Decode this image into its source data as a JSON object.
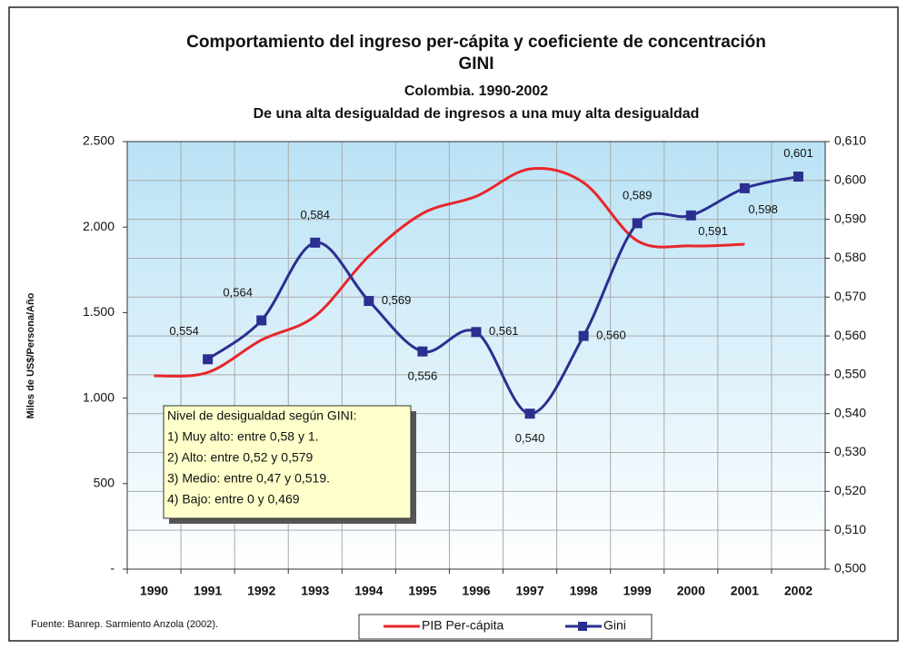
{
  "chart_data": {
    "type": "line",
    "title": [
      "Comportamiento del ingreso per-cápita y coeficiente de concentración",
      "GINI"
    ],
    "subtitle": [
      "Colombia.  1990-2002",
      "De una alta desigualdad de ingresos a una muy alta desigualdad"
    ],
    "y_label": "Miles de US$/Persona/Año",
    "categories": [
      "1990",
      "1991",
      "1992",
      "1993",
      "1994",
      "1995",
      "1996",
      "1997",
      "1998",
      "1999",
      "2000",
      "2001",
      "2002"
    ],
    "series": [
      {
        "name": "PIB Per-cápita",
        "color": "#e8262b",
        "marker": false,
        "values": [
          1130,
          1150,
          1340,
          1480,
          1830,
          2080,
          2180,
          2340,
          2260,
          1920,
          1890,
          1900,
          null
        ]
      },
      {
        "name": "Gini",
        "color": "#2b2f8f",
        "axis": "y2",
        "marker": true,
        "values": [
          null,
          0.554,
          0.564,
          0.584,
          0.569,
          0.556,
          0.561,
          0.54,
          0.56,
          0.589,
          0.591,
          0.598,
          0.601
        ],
        "value_labels": [
          null,
          "0,554",
          "0,564",
          "0,584",
          "0,569",
          "0,556",
          "0,561",
          "0,540",
          "0,560",
          "0,589",
          "0,591",
          "0,598",
          "0,601"
        ]
      }
    ],
    "ylim": [
      0,
      2500
    ],
    "yticks": [
      {
        "value": 0,
        "label": "-"
      },
      500,
      {
        "value": 1000,
        "label": "1.000"
      },
      {
        "value": 1500,
        "label": "1.500"
      },
      {
        "value": 2000,
        "label": "2.000"
      },
      {
        "value": 2500,
        "label": "2.500"
      }
    ],
    "y2lim": [
      0.5,
      0.61
    ],
    "y2ticks": [
      {
        "value": 0.5,
        "label": "0,500"
      },
      {
        "value": 0.51,
        "label": "0,510"
      },
      {
        "value": 0.52,
        "label": "0,520"
      },
      {
        "value": 0.53,
        "label": "0,530"
      },
      {
        "value": 0.54,
        "label": "0,540"
      },
      {
        "value": 0.55,
        "label": "0,550"
      },
      {
        "value": 0.56,
        "label": "0,560"
      },
      {
        "value": 0.57,
        "label": "0,570"
      },
      {
        "value": 0.58,
        "label": "0,580"
      },
      {
        "value": 0.59,
        "label": "0,590"
      },
      {
        "value": 0.6,
        "label": "0,600"
      },
      {
        "value": 0.61,
        "label": "0,610"
      }
    ],
    "grid": true,
    "legend": "bottom",
    "annotation": [
      "Nivel de desigualdad según GINI:",
      "1) Muy alto: entre 0,58 y 1.",
      "2) Alto: entre 0,52 y 0,579",
      "3)  Medio:  entre 0,47 y 0,519.",
      "4)  Bajo: entre 0 y 0,469"
    ],
    "source": "Fuente: Banrep.  Sarmiento Anzola (2002)."
  }
}
